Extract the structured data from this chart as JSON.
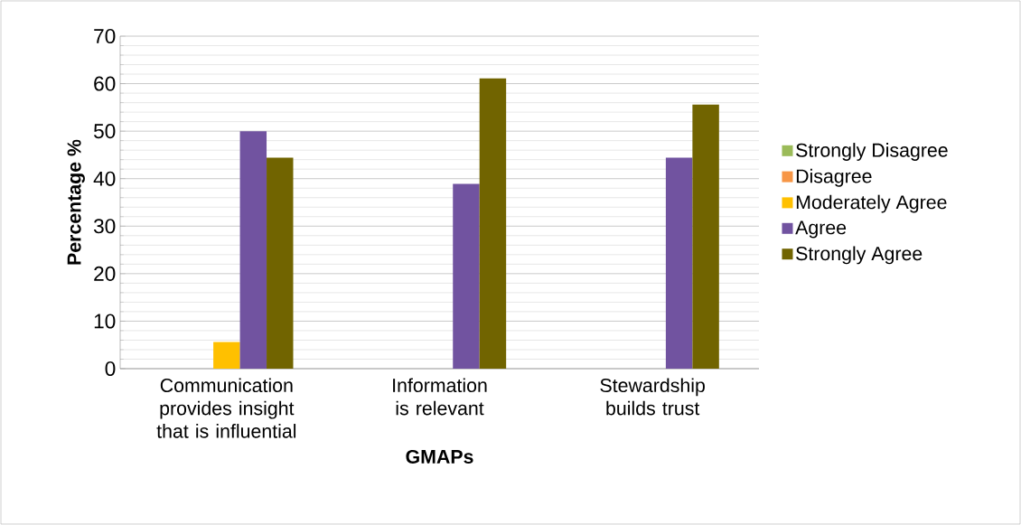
{
  "chart_data": {
    "type": "bar",
    "xlabel": "GMAPs",
    "ylabel": "Percentage %",
    "categories": [
      "Communication provides insight that is influential",
      "Information is relevant",
      "Stewardship builds trust"
    ],
    "series": [
      {
        "name": "Strongly Disagree",
        "color": "#9bbb59",
        "values": [
          0,
          0,
          0
        ]
      },
      {
        "name": "Disagree",
        "color": "#f79646",
        "values": [
          0,
          0,
          0
        ]
      },
      {
        "name": "Moderately Agree",
        "color": "#ffc000",
        "values": [
          5.6,
          0,
          0
        ]
      },
      {
        "name": "Agree",
        "color": "#7153a0",
        "values": [
          50,
          38.9,
          44.4
        ]
      },
      {
        "name": "Strongly Agree",
        "color": "#716400",
        "values": [
          44.4,
          61.1,
          55.6
        ]
      }
    ],
    "ylim": [
      0,
      70
    ],
    "yticks": [
      0,
      10,
      20,
      30,
      40,
      50,
      60,
      70
    ],
    "grid": "y",
    "legend": "right"
  }
}
